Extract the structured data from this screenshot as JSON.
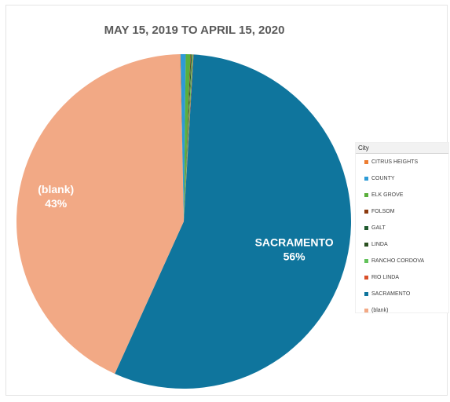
{
  "chart_data": {
    "type": "pie",
    "title": "MAY 15, 2019 TO APRIL 15, 2020",
    "legend_title": "City",
    "legend_position": "right",
    "slices": [
      {
        "name": "CITRUS HEIGHTS",
        "percent": 0.05,
        "color": "#ED7D31",
        "label": ""
      },
      {
        "name": "COUNTY",
        "percent": 0.5,
        "color": "#2E9BD6",
        "label": ""
      },
      {
        "name": "ELK GROVE",
        "percent": 0.45,
        "color": "#5AAF3C",
        "label": ""
      },
      {
        "name": "FOLSOM",
        "percent": 0.05,
        "color": "#8B3A0F",
        "label": ""
      },
      {
        "name": "GALT",
        "percent": 0.05,
        "color": "#1F5A2E",
        "label": ""
      },
      {
        "name": "LINDA",
        "percent": 0.05,
        "color": "#2A5020",
        "label": ""
      },
      {
        "name": "RANCHO CORDOVA",
        "percent": 0.1,
        "color": "#62C25A",
        "label": ""
      },
      {
        "name": "RIO LINDA",
        "percent": 0.05,
        "color": "#D9502A",
        "label": ""
      },
      {
        "name": "SACRAMENTO",
        "percent": 56.0,
        "color": "#0F759D",
        "label": "SACRAMENTO",
        "pct_label": "56%"
      },
      {
        "name": "(blank)",
        "percent": 43.0,
        "color": "#F2A985",
        "label": "(blank)",
        "pct_label": "43%"
      }
    ]
  }
}
